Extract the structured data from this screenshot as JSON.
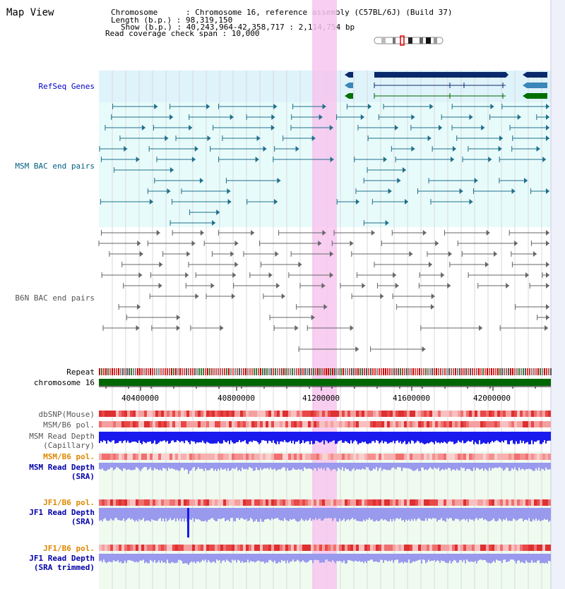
{
  "header": {
    "title": "Map View",
    "lines": [
      "Chromosome      : Chromosome 16, reference assembly (C57BL/6J) (Build 37)",
      "Length (b.p.) : 98,319,150",
      "Show (b.p.) : 40,243,964-42,358,717 : 2,114,754 bp",
      "Read coverage check span : 10,000"
    ]
  },
  "tracks": {
    "refseq": "RefSeq Genes",
    "msm_bac": "MSM BAC end pairs",
    "b6n_bac": "B6N BAC end pairs",
    "repeat": "Repeat",
    "chromosome": "chromosome 16",
    "dbsnp": "dbSNP(Mouse)",
    "msm_b6_pol": "MSM/B6 pol.",
    "msm_depth_cap": "MSM Read Depth\n(Capillary)",
    "msm_b6_pol2": "MSM/B6 pol.",
    "msm_depth_sra": "MSM Read Depth\n(SRA)",
    "jf1_b6_pol": "JF1/B6 pol.",
    "jf1_depth_sra": "JF1 Read Depth\n(SRA)",
    "jf1_b6_pol2": "JF1/B6 pol.",
    "jf1_depth_trim": "JF1 Read Depth\n(SRA trimmed)"
  },
  "axis": {
    "ticks": [
      "40400000",
      "40800000",
      "41200000",
      "41600000",
      "42000000"
    ]
  },
  "colors": {
    "refseq_label": "#0000cc",
    "msm_label": "#006080",
    "b6n_label": "#555555",
    "pol_label": "#dd8800",
    "depth_label": "#0000aa",
    "highlight": "#f7c6ef",
    "chromosome": "#006600",
    "msm_feature": "#1f6f8b",
    "b6n_feature": "#666666",
    "depth_blue": "#1a1aee",
    "depth_light": "#9999ee"
  }
}
